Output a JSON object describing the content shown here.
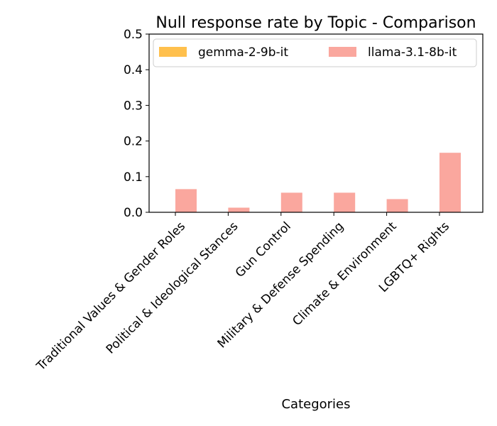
{
  "chart_data": {
    "type": "bar",
    "title": "Null response rate by Topic - Comparison",
    "xlabel": "Categories",
    "ylabel": "",
    "ylim": [
      0,
      0.5
    ],
    "yticks": [
      "0.0",
      "0.1",
      "0.2",
      "0.3",
      "0.4",
      "0.5"
    ],
    "grid": false,
    "legend_position": "top",
    "categories": [
      "Traditional Values & Gender Roles",
      "Political & Ideological Stances",
      "Gun Control",
      "Military & Defense Spending",
      "Climate & Environment",
      "LGBTQ+ Rights"
    ],
    "series": [
      {
        "name": "gemma-2-9b-it",
        "color": "#ffc04d",
        "values": [
          0,
          0,
          0,
          0,
          0,
          0
        ]
      },
      {
        "name": "llama-3.1-8b-it",
        "color": "#faa79e",
        "values": [
          0.065,
          0.013,
          0.055,
          0.055,
          0.037,
          0.167
        ]
      }
    ]
  }
}
